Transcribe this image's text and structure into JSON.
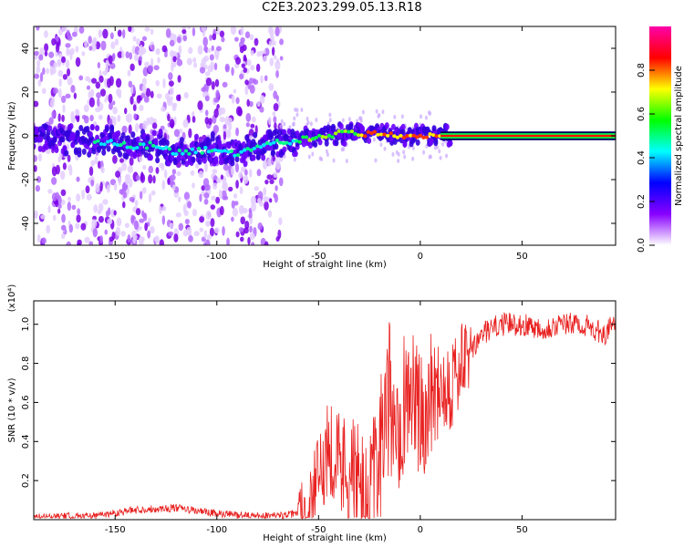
{
  "title": "C2E3.2023.299.05.13.R18",
  "chart_data": [
    {
      "type": "heatmap",
      "xlabel": "Height of straight line (km)",
      "ylabel": "Frequency (Hz)",
      "xlim": [
        -190,
        96
      ],
      "ylim": [
        -50,
        50
      ],
      "xticks": [
        -150,
        -100,
        -50,
        0,
        50
      ],
      "yticks": [
        -40,
        -20,
        0,
        20,
        40
      ],
      "colorbar": {
        "label": "Normalized spectral amplitude",
        "range": [
          0,
          1
        ],
        "ticks": [
          "0.0",
          "0.2",
          "0.4",
          "0.6",
          "0.8"
        ],
        "tick_values": [
          0,
          0.2,
          0.4,
          0.6,
          0.8
        ],
        "colormap": [
          "#ffffff",
          "#8800ff",
          "#0000ff",
          "#00ffff",
          "#00ff00",
          "#ffff00",
          "#ff0000",
          "#ff00aa"
        ]
      },
      "ridge": [
        {
          "x": -190,
          "y": -2
        },
        {
          "x": -170,
          "y": -2
        },
        {
          "x": -150,
          "y": -3
        },
        {
          "x": -140,
          "y": -5
        },
        {
          "x": -130,
          "y": -4
        },
        {
          "x": -120,
          "y": -8
        },
        {
          "x": -110,
          "y": -7
        },
        {
          "x": -100,
          "y": -6
        },
        {
          "x": -90,
          "y": -8
        },
        {
          "x": -80,
          "y": -5
        },
        {
          "x": -70,
          "y": -3
        },
        {
          "x": -60,
          "y": -2
        },
        {
          "x": -50,
          "y": 0
        },
        {
          "x": -40,
          "y": 1
        },
        {
          "x": -30,
          "y": 1
        },
        {
          "x": -20,
          "y": 1
        },
        {
          "x": -10,
          "y": 0
        },
        {
          "x": 0,
          "y": 0
        },
        {
          "x": 10,
          "y": 0
        },
        {
          "x": 96,
          "y": 0
        }
      ],
      "background_noise_range": [
        -190,
        -68
      ]
    },
    {
      "type": "line",
      "xlabel": "Height of straight line (km)",
      "ylabel": "SNR (10 * v/v)",
      "yunit": "(x10⁴)",
      "xlim": [
        -190,
        96
      ],
      "ylim": [
        0,
        1.12
      ],
      "xticks": [
        -150,
        -100,
        -50,
        0,
        50
      ],
      "yticks": [
        0.2,
        0.4,
        0.6,
        0.8,
        1.0
      ],
      "ytick_labels": [
        "0.2",
        "0.4",
        "0.6",
        "0.8",
        "1.0"
      ],
      "series": [
        {
          "color": "#e8201f",
          "x": [
            -190,
            -160,
            -140,
            -120,
            -100,
            -80,
            -70,
            -60,
            -55,
            -50,
            -45,
            -40,
            -35,
            -30,
            -25,
            -20,
            -15,
            -10,
            -5,
            0,
            5,
            10,
            15,
            20,
            25,
            30,
            40,
            50,
            60,
            70,
            80,
            90,
            96
          ],
          "y": [
            0.01,
            0.02,
            0.05,
            0.06,
            0.03,
            0.02,
            0.02,
            0.03,
            0.08,
            0.2,
            0.4,
            0.3,
            0.25,
            0.15,
            0.05,
            0.3,
            0.6,
            0.55,
            0.7,
            0.5,
            0.65,
            0.7,
            0.7,
            0.78,
            0.85,
            0.95,
            1.0,
            1.0,
            0.98,
            1.0,
            1.0,
            0.95,
            1.0
          ]
        }
      ]
    }
  ]
}
